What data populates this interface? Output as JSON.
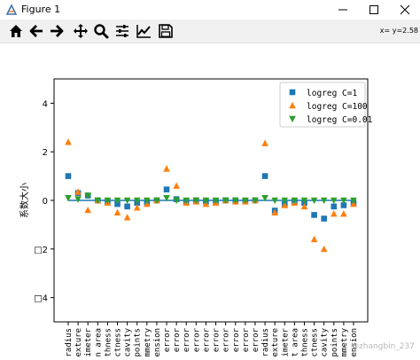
{
  "window": {
    "title": "Figure 1",
    "controls": {
      "minimize": "minimize",
      "maximize": "maximize",
      "close": "close"
    }
  },
  "toolbar": {
    "buttons": [
      {
        "name": "home",
        "icon": "home-icon"
      },
      {
        "name": "back",
        "icon": "arrow-left-icon"
      },
      {
        "name": "forward",
        "icon": "arrow-right-icon"
      },
      {
        "name": "pan",
        "icon": "move-icon"
      },
      {
        "name": "zoom",
        "icon": "zoom-icon"
      },
      {
        "name": "subplots",
        "icon": "sliders-icon"
      },
      {
        "name": "edit-curves",
        "icon": "line-chart-icon"
      },
      {
        "name": "save",
        "icon": "save-icon"
      }
    ],
    "coordinates": "x= y=2.58"
  },
  "watermark": "@zhangbin_237",
  "chart_data": {
    "type": "scatter",
    "ylabel": "系数大小",
    "ylim": [
      -5,
      5
    ],
    "yticks": [
      -4,
      -2,
      0,
      2,
      4
    ],
    "ytick_labels": [
      "□4",
      "□2",
      "0",
      "2",
      "4"
    ],
    "categories": [
      "radius",
      "exture",
      "imeter",
      "n area",
      "thness",
      "ctness",
      "cavity",
      "points",
      "mmetry",
      "ension",
      "error",
      "error",
      "error",
      "error",
      "error",
      "error",
      "error",
      "error",
      "error",
      "error",
      "radius",
      "exture",
      "imeter",
      "t area",
      "thness",
      "ctness",
      "cavity",
      "points",
      "mmetry",
      "ension"
    ],
    "hline": 0,
    "legend_position": "top-right",
    "series": [
      {
        "name": "logreg C=1",
        "marker": "square",
        "color": "#1f77b4",
        "values": [
          1.0,
          0.3,
          0.2,
          0.0,
          -0.05,
          -0.15,
          -0.25,
          -0.1,
          -0.08,
          0.0,
          0.45,
          0.05,
          -0.05,
          0.0,
          -0.05,
          -0.05,
          0.0,
          0.0,
          -0.03,
          0.0,
          1.0,
          -0.42,
          -0.15,
          -0.05,
          -0.1,
          -0.6,
          -0.75,
          -0.25,
          -0.2,
          -0.1
        ]
      },
      {
        "name": "logreg C=100",
        "marker": "triangle-up",
        "color": "#ff7f0e",
        "values": [
          2.4,
          0.35,
          -0.4,
          0.0,
          -0.1,
          -0.5,
          -0.7,
          -0.3,
          -0.15,
          0.0,
          1.3,
          0.6,
          -0.1,
          -0.05,
          -0.15,
          -0.1,
          0.0,
          -0.05,
          -0.05,
          0.0,
          2.35,
          -0.5,
          -0.2,
          -0.1,
          -0.25,
          -1.6,
          -2.0,
          -0.55,
          -0.55,
          -0.15
        ]
      },
      {
        "name": "logreg C=0.01",
        "marker": "triangle-down",
        "color": "#2ca02c",
        "values": [
          0.1,
          0.05,
          0.2,
          0.0,
          0.0,
          0.0,
          0.0,
          0.0,
          0.0,
          0.0,
          0.1,
          0.0,
          0.0,
          0.0,
          0.0,
          0.0,
          0.0,
          0.0,
          0.0,
          0.0,
          0.1,
          0.0,
          0.0,
          0.0,
          0.0,
          0.0,
          0.0,
          0.0,
          0.0,
          0.0
        ]
      }
    ]
  }
}
